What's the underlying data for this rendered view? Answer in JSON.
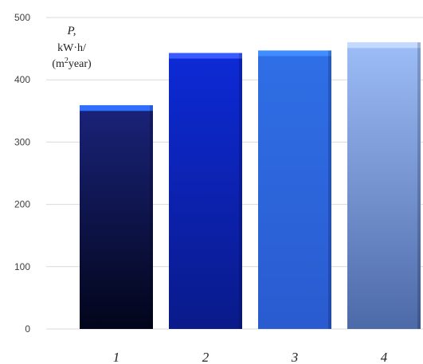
{
  "chart_data": {
    "type": "bar",
    "categories": [
      "1",
      "2",
      "3",
      "4"
    ],
    "values": [
      359,
      443,
      447,
      460
    ],
    "title": "",
    "ylabel": {
      "symbol": "P,",
      "line2": "kW·h/",
      "line3_prefix": "(m",
      "line3_sup": "2",
      "line3_suffix": "year)"
    },
    "xlabel": "",
    "ylim": [
      0,
      500
    ],
    "yticks": [
      "0",
      "100",
      "200",
      "300",
      "400",
      "500"
    ],
    "grid": true,
    "legend": "none",
    "colors": {
      "bar_tops": [
        "#1a237a",
        "#0d2ad6",
        "#2f6fe6",
        "#9dbdf7"
      ],
      "bar_bottoms": [
        "#02051a",
        "#0a1a8a",
        "#2a5bd0",
        "#4d6aa8"
      ],
      "bar_caps": [
        "#2f6fff",
        "#3a5cff",
        "#3f8dff",
        "#c4d9ff"
      ]
    }
  }
}
